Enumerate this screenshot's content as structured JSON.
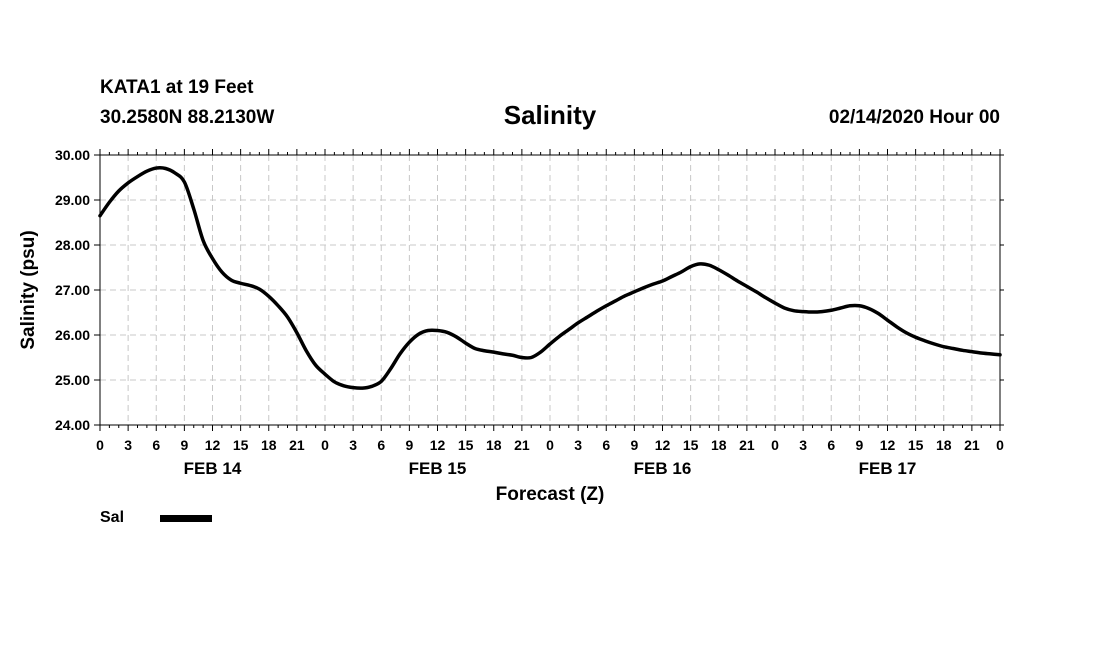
{
  "header": {
    "station": "KATA1 at 19 Feet",
    "coords": "30.2580N 88.2130W",
    "title": "Salinity",
    "runtime": "02/14/2020 Hour 00"
  },
  "chart_data": {
    "type": "line",
    "title": "Salinity",
    "xlabel": "Forecast (Z)",
    "ylabel": "Salinity (psu)",
    "ylim": [
      24.0,
      30.0
    ],
    "xlim": [
      0,
      96
    ],
    "y_ticks": [
      "24.00",
      "25.00",
      "26.00",
      "27.00",
      "28.00",
      "29.00",
      "30.00"
    ],
    "x_tick_labels": [
      "0",
      "3",
      "6",
      "9",
      "12",
      "15",
      "18",
      "21",
      "0",
      "3",
      "6",
      "9",
      "12",
      "15",
      "18",
      "21",
      "0",
      "3",
      "6",
      "9",
      "12",
      "15",
      "18",
      "21",
      "0",
      "3",
      "6",
      "9",
      "12",
      "15",
      "18",
      "21",
      "0"
    ],
    "date_labels": [
      {
        "label": "FEB 14",
        "hour": 12
      },
      {
        "label": "FEB 15",
        "hour": 36
      },
      {
        "label": "FEB 16",
        "hour": 60
      },
      {
        "label": "FEB 17",
        "hour": 84
      }
    ],
    "grid": true,
    "legend_position": "bottom-left",
    "series": [
      {
        "name": "Sal",
        "color": "#000000",
        "x": [
          0,
          1,
          2,
          3,
          4,
          5,
          6,
          7,
          8,
          9,
          10,
          11,
          12,
          13,
          14,
          15,
          16,
          17,
          18,
          19,
          20,
          21,
          22,
          23,
          24,
          25,
          26,
          27,
          28,
          29,
          30,
          31,
          32,
          33,
          34,
          35,
          36,
          37,
          38,
          39,
          40,
          41,
          42,
          43,
          44,
          45,
          46,
          47,
          48,
          49,
          50,
          51,
          52,
          53,
          54,
          55,
          56,
          57,
          58,
          59,
          60,
          61,
          62,
          63,
          64,
          65,
          66,
          67,
          68,
          69,
          70,
          71,
          72,
          73,
          74,
          75,
          76,
          77,
          78,
          79,
          80,
          81,
          82,
          83,
          84,
          85,
          86,
          87,
          88,
          89,
          90,
          91,
          92,
          93,
          94,
          95,
          96
        ],
        "y": [
          28.65,
          28.95,
          29.2,
          29.38,
          29.52,
          29.64,
          29.71,
          29.7,
          29.6,
          29.4,
          28.8,
          28.1,
          27.7,
          27.4,
          27.22,
          27.15,
          27.1,
          27.02,
          26.86,
          26.65,
          26.4,
          26.05,
          25.65,
          25.33,
          25.13,
          24.96,
          24.87,
          24.83,
          24.82,
          24.86,
          24.97,
          25.25,
          25.58,
          25.84,
          26.02,
          26.1,
          26.1,
          26.06,
          25.96,
          25.82,
          25.7,
          25.65,
          25.62,
          25.58,
          25.55,
          25.5,
          25.5,
          25.62,
          25.8,
          25.97,
          26.12,
          26.27,
          26.4,
          26.53,
          26.65,
          26.76,
          26.87,
          26.96,
          27.05,
          27.13,
          27.2,
          27.3,
          27.4,
          27.52,
          27.58,
          27.55,
          27.45,
          27.33,
          27.2,
          27.08,
          26.96,
          26.83,
          26.71,
          26.6,
          26.54,
          26.52,
          26.51,
          26.52,
          26.55,
          26.6,
          26.65,
          26.65,
          26.59,
          26.48,
          26.33,
          26.18,
          26.05,
          25.95,
          25.87,
          25.8,
          25.74,
          25.7,
          25.66,
          25.63,
          25.6,
          25.58,
          25.56
        ]
      }
    ]
  }
}
